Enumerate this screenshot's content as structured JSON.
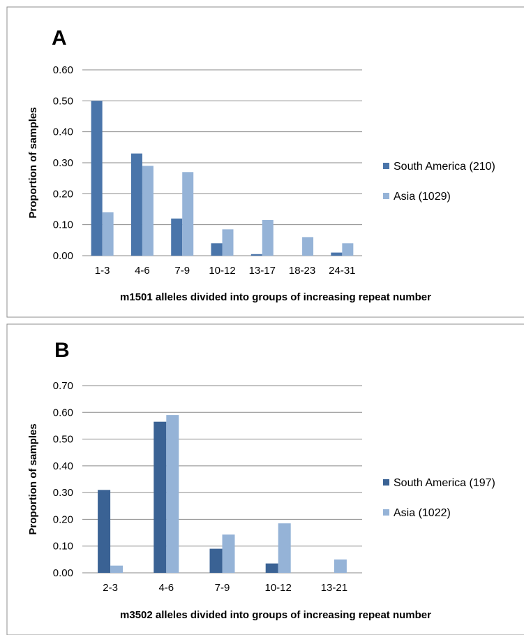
{
  "chart_data": [
    {
      "type": "bar",
      "panel_label": "A",
      "categories": [
        "1-3",
        "4-6",
        "7-9",
        "10-12",
        "13-17",
        "18-23",
        "24-31"
      ],
      "series": [
        {
          "name": "South America (210)",
          "color": "#4a75aa",
          "values": [
            0.5,
            0.33,
            0.12,
            0.04,
            0.005,
            0.0,
            0.01
          ]
        },
        {
          "name": "Asia (1029)",
          "color": "#95b3d7",
          "values": [
            0.14,
            0.29,
            0.27,
            0.085,
            0.115,
            0.06,
            0.04
          ]
        }
      ],
      "xlabel": "m1501 alleles divided into groups of increasing repeat number",
      "ylabel": "Proportion of samples",
      "ylim": [
        0,
        0.6
      ],
      "yticks": [
        "0.00",
        "0.10",
        "0.20",
        "0.30",
        "0.40",
        "0.50",
        "0.60"
      ],
      "grid": true,
      "legend_position": "right"
    },
    {
      "type": "bar",
      "panel_label": "B",
      "categories": [
        "2-3",
        "4-6",
        "7-9",
        "10-12",
        "13-21"
      ],
      "series": [
        {
          "name": "South America (197)",
          "color": "#3a6294",
          "values": [
            0.31,
            0.565,
            0.09,
            0.035,
            0.0
          ]
        },
        {
          "name": "Asia (1022)",
          "color": "#95b3d7",
          "values": [
            0.027,
            0.59,
            0.143,
            0.185,
            0.05
          ]
        }
      ],
      "xlabel": "m3502 alleles divided into groups of increasing repeat number",
      "ylabel": "Proportion of samples",
      "ylim": [
        0,
        0.7
      ],
      "yticks": [
        "0.00",
        "0.10",
        "0.20",
        "0.30",
        "0.40",
        "0.50",
        "0.60",
        "0.70"
      ],
      "grid": true,
      "legend_position": "right"
    }
  ]
}
